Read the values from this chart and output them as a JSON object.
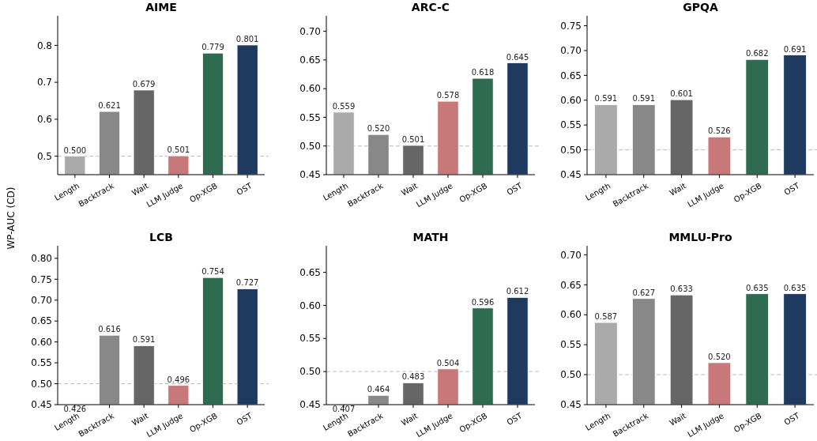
{
  "chart_data": [
    {
      "type": "bar",
      "title": "AIME",
      "ylabel": "WP-AUC (CD)",
      "categories": [
        "Length",
        "Backtrack",
        "Wait",
        "LLM Judge",
        "Op-XGB",
        "OST"
      ],
      "values": [
        0.5,
        0.621,
        0.679,
        0.501,
        0.779,
        0.801
      ],
      "value_labels": [
        "0.500",
        "0.621",
        "0.679",
        "0.501",
        "0.779",
        "0.801"
      ],
      "colors": [
        "#aaaaaa",
        "#888888",
        "#666666",
        "#c87878",
        "#2e6b50",
        "#1f3a5f"
      ],
      "ylim": [
        0.45,
        0.88
      ],
      "yticks": [
        0.5,
        0.6,
        0.7,
        0.8
      ],
      "ref_lines": [
        {
          "axis": "y",
          "value": 0.5,
          "color": "#bbbbbb",
          "line_style": "dashed"
        }
      ],
      "grid": false
    },
    {
      "type": "bar",
      "title": "ARC-C",
      "categories": [
        "Length",
        "Backtrack",
        "Wait",
        "LLM Judge",
        "Op-XGB",
        "OST"
      ],
      "values": [
        0.559,
        0.52,
        0.501,
        0.578,
        0.618,
        0.645
      ],
      "value_labels": [
        "0.559",
        "0.520",
        "0.501",
        "0.578",
        "0.618",
        "0.645"
      ],
      "colors": [
        "#aaaaaa",
        "#888888",
        "#666666",
        "#c87878",
        "#2e6b50",
        "#1f3a5f"
      ],
      "ylim": [
        0.45,
        0.727
      ],
      "yticks": [
        0.45,
        {
          "value": 0.5,
          "label": "0.50"
        },
        0.55,
        {
          "value": 0.6,
          "label": "0.60"
        },
        0.65,
        {
          "value": 0.7,
          "label": "0.70"
        }
      ],
      "ref_lines": [
        {
          "axis": "y",
          "value": 0.5,
          "color": "#bbbbbb",
          "line_style": "dashed"
        }
      ],
      "grid": false
    },
    {
      "type": "bar",
      "title": "GPQA",
      "categories": [
        "Length",
        "Backtrack",
        "Wait",
        "LLM Judge",
        "Op-XGB",
        "OST"
      ],
      "values": [
        0.591,
        0.591,
        0.601,
        0.526,
        0.682,
        0.691
      ],
      "value_labels": [
        "0.591",
        "0.591",
        "0.601",
        "0.526",
        "0.682",
        "0.691"
      ],
      "colors": [
        "#aaaaaa",
        "#888888",
        "#666666",
        "#c87878",
        "#2e6b50",
        "#1f3a5f"
      ],
      "ylim": [
        0.45,
        0.77
      ],
      "yticks": [
        0.45,
        {
          "value": 0.5,
          "label": "0.50"
        },
        0.55,
        {
          "value": 0.6,
          "label": "0.60"
        },
        0.65,
        {
          "value": 0.7,
          "label": "0.70"
        },
        0.75
      ],
      "ref_lines": [
        {
          "axis": "y",
          "value": 0.5,
          "color": "#bbbbbb",
          "line_style": "dashed"
        }
      ],
      "grid": false
    },
    {
      "type": "bar",
      "title": "LCB",
      "categories": [
        "Length",
        "Backtrack",
        "Wait",
        "LLM Judge",
        "Op-XGB",
        "OST"
      ],
      "values": [
        null,
        0.616,
        0.591,
        0.496,
        0.754,
        0.727
      ],
      "value_labels": [
        "0.426",
        "0.616",
        "0.591",
        "0.496",
        "0.754",
        "0.727"
      ],
      "colors": [
        null,
        "#888888",
        "#666666",
        "#c87878",
        "#2e6b50",
        "#1f3a5f"
      ],
      "ylim": [
        0.45,
        0.83
      ],
      "yticks": [
        0.45,
        {
          "value": 0.5,
          "label": "0.50"
        },
        0.55,
        {
          "value": 0.6,
          "label": "0.60"
        },
        0.65,
        {
          "value": 0.7,
          "label": "0.70"
        },
        0.75,
        {
          "value": 0.8,
          "label": "0.80"
        }
      ],
      "ref_lines": [
        {
          "axis": "y",
          "value": 0.5,
          "color": "#bbbbbb",
          "line_style": "dashed"
        }
      ],
      "grid": false
    },
    {
      "type": "bar",
      "title": "MATH",
      "categories": [
        "Length",
        "Backtrack",
        "Wait",
        "LLM Judge",
        "Op-XGB",
        "OST"
      ],
      "values": [
        null,
        0.464,
        0.483,
        0.504,
        0.596,
        0.612
      ],
      "value_labels": [
        "0.407",
        "0.464",
        "0.483",
        "0.504",
        "0.596",
        "0.612"
      ],
      "colors": [
        null,
        "#888888",
        "#666666",
        "#c87878",
        "#2e6b50",
        "#1f3a5f"
      ],
      "ylim": [
        0.45,
        0.69
      ],
      "yticks": [
        0.45,
        {
          "value": 0.5,
          "label": "0.50"
        },
        0.55,
        {
          "value": 0.6,
          "label": "0.60"
        },
        0.65
      ],
      "ref_lines": [
        {
          "axis": "y",
          "value": 0.5,
          "color": "#bbbbbb",
          "line_style": "dashed"
        }
      ],
      "grid": false
    },
    {
      "type": "bar",
      "title": "MMLU-Pro",
      "categories": [
        "Length",
        "Backtrack",
        "Wait",
        "LLM Judge",
        "Op-XGB",
        "OST"
      ],
      "values": [
        0.587,
        0.627,
        0.633,
        0.52,
        0.635,
        0.635
      ],
      "value_labels": [
        "0.587",
        "0.627",
        "0.633",
        "0.520",
        "0.635",
        "0.635"
      ],
      "colors": [
        "#aaaaaa",
        "#888888",
        "#666666",
        "#c87878",
        "#2e6b50",
        "#1f3a5f"
      ],
      "ylim": [
        0.45,
        0.715
      ],
      "yticks": [
        0.45,
        {
          "value": 0.5,
          "label": "0.50"
        },
        0.55,
        {
          "value": 0.6,
          "label": "0.60"
        },
        0.65,
        {
          "value": 0.7,
          "label": "0.70"
        }
      ],
      "ref_lines": [
        {
          "axis": "y",
          "value": 0.5,
          "color": "#bbbbbb",
          "line_style": "dashed"
        }
      ],
      "grid": false
    }
  ]
}
